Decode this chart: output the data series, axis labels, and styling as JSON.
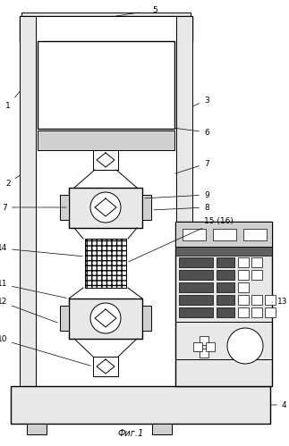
{
  "title": "Фиг.1",
  "fig_width": 3.23,
  "fig_height": 4.99,
  "dpi": 100,
  "bg_color": "#ffffff"
}
